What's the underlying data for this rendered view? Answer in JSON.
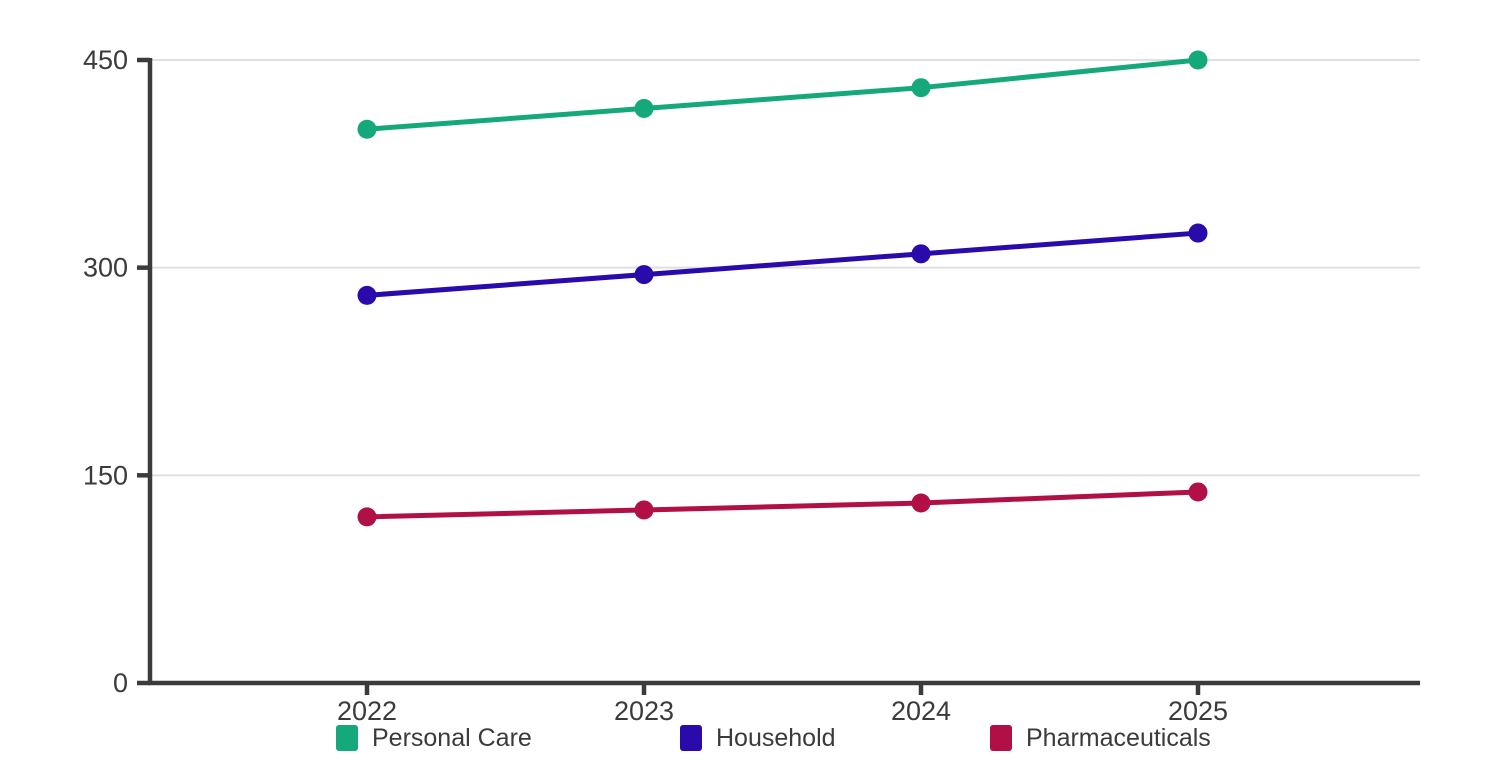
{
  "chart_data": {
    "type": "line",
    "categories": [
      "2022",
      "2023",
      "2024",
      "2025"
    ],
    "series": [
      {
        "name": "Personal Care",
        "color": "#15a87a",
        "values": [
          400,
          415,
          430,
          450
        ]
      },
      {
        "name": "Household",
        "color": "#2a0aaa",
        "values": [
          280,
          295,
          310,
          325
        ]
      },
      {
        "name": "Pharmaceuticals",
        "color": "#b01046",
        "values": [
          120,
          125,
          130,
          138
        ]
      }
    ],
    "yticks": [
      "0",
      "150",
      "300",
      "450"
    ],
    "ytick_values": [
      0,
      150,
      300,
      450
    ],
    "ylim": [
      0,
      450
    ],
    "grid": true,
    "legend_position": "bottom",
    "axis_color": "#3b3b3b",
    "grid_color": "#e0e0e0",
    "label_color": "#3b3b3b"
  }
}
